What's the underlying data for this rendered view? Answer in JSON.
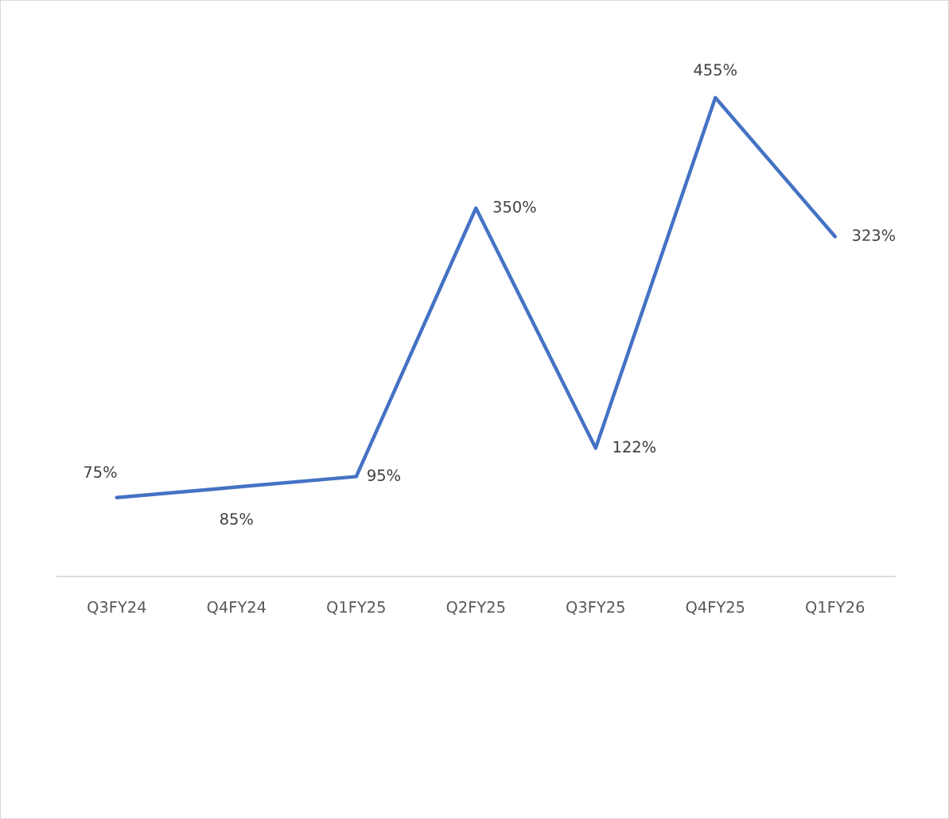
{
  "chart_data": {
    "type": "line",
    "categories": [
      "Q3FY24",
      "Q4FY24",
      "Q1FY25",
      "Q2FY25",
      "Q3FY25",
      "Q4FY25",
      "Q1FY26"
    ],
    "series": [
      {
        "color": "#4472c4",
        "values": [
          75,
          85,
          95,
          350,
          122,
          455,
          323
        ],
        "value_labels": [
          "75%",
          "85%",
          "95%",
          "350%",
          "122%",
          "455%",
          "323%"
        ]
      }
    ],
    "grid": false,
    "legend": false,
    "marker": "none",
    "line_style": "solid",
    "tick_labels": "x"
  }
}
